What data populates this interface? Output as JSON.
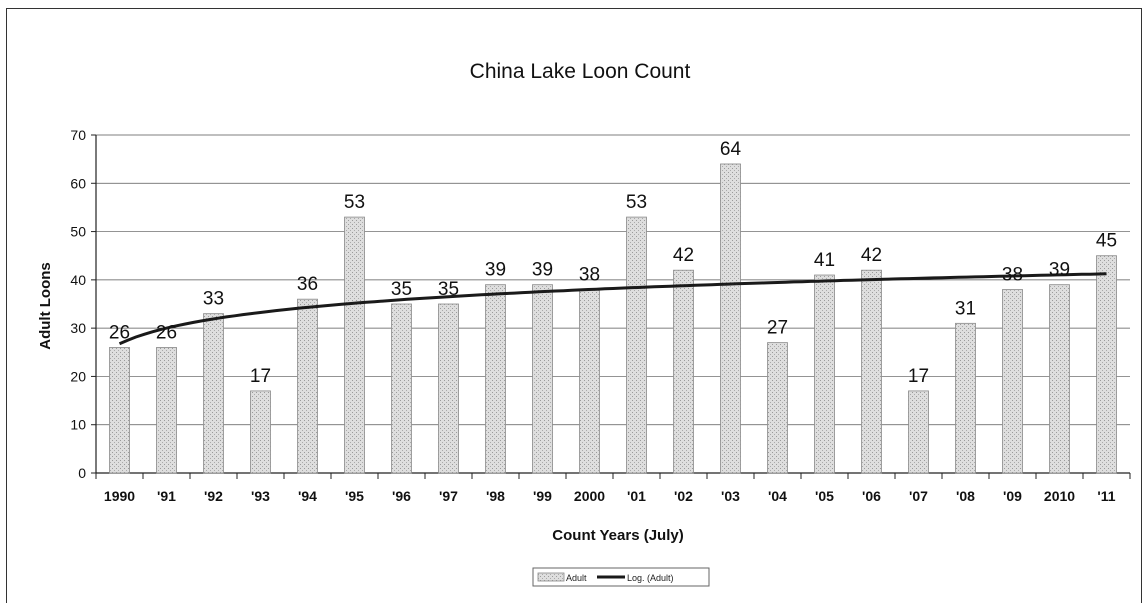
{
  "chart_data": {
    "type": "bar",
    "title": "China Lake Loon Count",
    "xlabel": "Count Years (July)",
    "ylabel": "Adult Loons",
    "categories": [
      "1990",
      "'91",
      "'92",
      "'93",
      "'94",
      "'95",
      "'96",
      "'97",
      "'98",
      "'99",
      "2000",
      "'01",
      "'02",
      "'03",
      "'04",
      "'05",
      "'06",
      "'07",
      "'08",
      "'09",
      "2010",
      "'11"
    ],
    "series": [
      {
        "name": "Adult",
        "values": [
          26,
          26,
          33,
          17,
          36,
          53,
          35,
          35,
          39,
          39,
          38,
          53,
          42,
          64,
          27,
          41,
          42,
          17,
          31,
          38,
          39,
          45
        ]
      }
    ],
    "trendline": {
      "name": "Log. (Adult)",
      "type": "logarithmic"
    },
    "ylim": [
      0,
      70
    ],
    "yticks": [
      0,
      10,
      20,
      30,
      40,
      50,
      60,
      70
    ],
    "grid": true,
    "legend_position": "bottom",
    "colors": {
      "bar_fill": "#d4d4d4",
      "bar_edge": "#8a8a8a",
      "trend": "#1a1a1a",
      "grid": "#555555"
    }
  }
}
